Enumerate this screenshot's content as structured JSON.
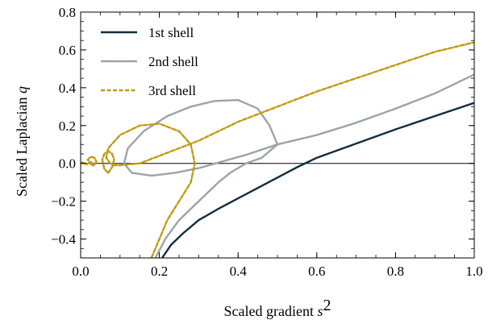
{
  "chart_data": {
    "type": "line",
    "title": "",
    "xlabel": "Scaled gradient",
    "xlabel_var": "s",
    "xlabel_sup": "2",
    "ylabel": "Scaled Laplacian",
    "ylabel_var": "q",
    "xlim": [
      0.0,
      1.0
    ],
    "ylim": [
      -0.5,
      0.8
    ],
    "xticks": [
      0.0,
      0.2,
      0.4,
      0.6,
      0.8,
      1.0
    ],
    "xtick_labels": [
      "0.0",
      "0.2",
      "0.4",
      "0.6",
      "0.8",
      "1.0"
    ],
    "yticks": [
      -0.4,
      -0.2,
      0.0,
      0.2,
      0.4,
      0.6,
      0.8
    ],
    "ytick_labels": [
      "−0.4",
      "−0.2",
      "0.0",
      "0.2",
      "0.4",
      "0.6",
      "0.8"
    ],
    "grid": false,
    "zero_line": true,
    "legend_position": "top-left",
    "series": [
      {
        "name": "1st shell",
        "color": "#0f2e3f",
        "dash": "solid",
        "points": [
          [
            0.207,
            -0.5
          ],
          [
            0.23,
            -0.43
          ],
          [
            0.26,
            -0.37
          ],
          [
            0.3,
            -0.3
          ],
          [
            0.35,
            -0.24
          ],
          [
            0.4,
            -0.185
          ],
          [
            0.45,
            -0.13
          ],
          [
            0.5,
            -0.075
          ],
          [
            0.55,
            -0.02
          ],
          [
            0.6,
            0.03
          ],
          [
            0.7,
            0.105
          ],
          [
            0.8,
            0.18
          ],
          [
            0.9,
            0.25
          ],
          [
            1.0,
            0.32
          ]
        ]
      },
      {
        "name": "2nd shell",
        "color": "#9aa5a4",
        "dash": "solid",
        "points": [
          [
            0.19,
            -0.5
          ],
          [
            0.215,
            -0.4
          ],
          [
            0.25,
            -0.3
          ],
          [
            0.3,
            -0.2
          ],
          [
            0.35,
            -0.1
          ],
          [
            0.38,
            -0.05
          ],
          [
            0.42,
            0.0
          ],
          [
            0.46,
            0.03
          ],
          [
            0.5,
            0.1
          ],
          [
            0.48,
            0.2
          ],
          [
            0.45,
            0.29
          ],
          [
            0.4,
            0.335
          ],
          [
            0.34,
            0.33
          ],
          [
            0.28,
            0.3
          ],
          [
            0.22,
            0.25
          ],
          [
            0.16,
            0.17
          ],
          [
            0.12,
            0.08
          ],
          [
            0.11,
            0.0
          ],
          [
            0.13,
            -0.05
          ],
          [
            0.18,
            -0.065
          ],
          [
            0.24,
            -0.05
          ],
          [
            0.3,
            -0.025
          ],
          [
            0.36,
            0.01
          ],
          [
            0.42,
            0.045
          ],
          [
            0.5,
            0.1
          ],
          [
            0.6,
            0.15
          ],
          [
            0.7,
            0.215
          ],
          [
            0.8,
            0.29
          ],
          [
            0.9,
            0.37
          ],
          [
            1.0,
            0.47
          ]
        ]
      },
      {
        "name": "3rd shell",
        "color": "#c19a12",
        "dash": "dashed",
        "points": [
          [
            0.18,
            -0.5
          ],
          [
            0.2,
            -0.4
          ],
          [
            0.22,
            -0.3
          ],
          [
            0.25,
            -0.2
          ],
          [
            0.28,
            -0.1
          ],
          [
            0.29,
            0.0
          ],
          [
            0.28,
            0.1
          ],
          [
            0.25,
            0.17
          ],
          [
            0.2,
            0.21
          ],
          [
            0.15,
            0.2
          ],
          [
            0.1,
            0.15
          ],
          [
            0.07,
            0.08
          ],
          [
            0.065,
            0.03
          ],
          [
            0.075,
            0.0
          ],
          [
            0.085,
            -0.01
          ],
          [
            0.1,
            -0.01
          ],
          [
            0.15,
            0.0
          ],
          [
            0.2,
            0.04
          ],
          [
            0.3,
            0.12
          ],
          [
            0.4,
            0.22
          ],
          [
            0.5,
            0.3
          ],
          [
            0.6,
            0.38
          ],
          [
            0.7,
            0.45
          ],
          [
            0.8,
            0.52
          ],
          [
            0.9,
            0.59
          ],
          [
            1.0,
            0.64
          ]
        ]
      },
      {
        "name": "",
        "color": "#c19a12",
        "dash": "dashed",
        "points": [
          [
            0.07,
            -0.05
          ],
          [
            0.06,
            -0.03
          ],
          [
            0.055,
            0.02
          ],
          [
            0.06,
            0.05
          ],
          [
            0.07,
            0.065
          ],
          [
            0.08,
            0.05
          ],
          [
            0.085,
            0.02
          ],
          [
            0.08,
            -0.02
          ],
          [
            0.07,
            -0.05
          ]
        ]
      },
      {
        "name": "",
        "color": "#c19a12",
        "dash": "dashed",
        "points": [
          [
            0.03,
            -0.01
          ],
          [
            0.022,
            0.005
          ],
          [
            0.018,
            0.02
          ],
          [
            0.025,
            0.035
          ],
          [
            0.035,
            0.03
          ],
          [
            0.04,
            0.01
          ],
          [
            0.035,
            -0.01
          ],
          [
            0.03,
            -0.01
          ]
        ]
      },
      {
        "name": "",
        "color": "#c19a12",
        "dash": "solid",
        "points": [
          [
            0.0,
            0.0
          ],
          [
            0.005,
            0.005
          ],
          [
            0.01,
            0.0
          ],
          [
            0.015,
            -0.005
          ],
          [
            0.02,
            0.0
          ],
          [
            0.025,
            0.008
          ],
          [
            0.03,
            0.0
          ]
        ]
      }
    ]
  }
}
